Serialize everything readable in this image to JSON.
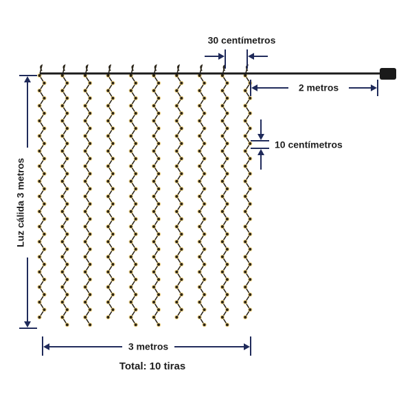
{
  "labels": {
    "strand_spacing": "30 centímetros",
    "lead_length": "2 metros",
    "bulb_spacing": "10 centímetros",
    "height": "Luz cálida 3 metros",
    "width": "3 metros",
    "total": "Total: 10 tiras"
  }
}
